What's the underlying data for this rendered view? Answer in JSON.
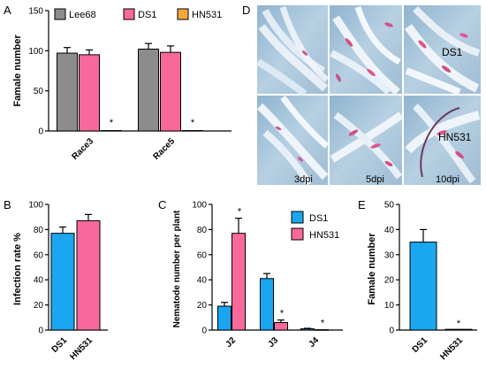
{
  "panels": {
    "A": "A",
    "B": "B",
    "C": "C",
    "D": "D",
    "E": "E"
  },
  "chart_data": [
    {
      "panel": "A",
      "type": "bar",
      "ylabel": "Famale number",
      "ylim": [
        0,
        150
      ],
      "yticks": [
        "0",
        "50",
        "100",
        "150"
      ],
      "categories": [
        "Race3",
        "Race5"
      ],
      "series": [
        {
          "name": "Lee68",
          "color": "#8c8c8c",
          "values": [
            97,
            102
          ],
          "errors": [
            7,
            7
          ]
        },
        {
          "name": "DS1",
          "color": "#f7699b",
          "values": [
            95,
            98
          ],
          "errors": [
            6,
            8
          ]
        },
        {
          "name": "HN531",
          "color": "#f5a93c",
          "values": [
            0.5,
            0.5
          ],
          "errors": [
            0,
            0
          ]
        }
      ],
      "significance": [
        {
          "category": "Race3",
          "series": "HN531",
          "label": "*"
        },
        {
          "category": "Race5",
          "series": "HN531",
          "label": "*"
        }
      ],
      "legend": "top"
    },
    {
      "panel": "B",
      "type": "bar",
      "ylabel": "Infection rate %",
      "ylim": [
        0,
        100
      ],
      "yticks": [
        "0",
        "20",
        "40",
        "60",
        "80",
        "100"
      ],
      "categories": [
        "DS1",
        "HN531"
      ],
      "colors": [
        "#1aa7f0",
        "#f7699b"
      ],
      "values": [
        77,
        87
      ],
      "errors": [
        5,
        5
      ]
    },
    {
      "panel": "C",
      "type": "bar",
      "ylabel": "Nematode number per plant",
      "ylim": [
        0,
        100
      ],
      "yticks": [
        "0",
        "20",
        "40",
        "60",
        "80",
        "100"
      ],
      "categories": [
        "J2",
        "J3",
        "J4"
      ],
      "series": [
        {
          "name": "DS1",
          "color": "#1aa7f0",
          "values": [
            19,
            41,
            1
          ],
          "errors": [
            3,
            4,
            0.4
          ]
        },
        {
          "name": "HN531",
          "color": "#f7699b",
          "values": [
            77,
            6,
            0.3
          ],
          "errors": [
            12,
            2,
            0
          ]
        }
      ],
      "significance": [
        {
          "category": "J2",
          "series": "HN531",
          "label": "*"
        },
        {
          "category": "J3",
          "series": "HN531",
          "label": "*"
        },
        {
          "category": "J4",
          "series": "HN531",
          "label": "*"
        }
      ],
      "legend": "top-right"
    },
    {
      "panel": "E",
      "type": "bar",
      "ylabel": "Famale number",
      "ylim": [
        0,
        50
      ],
      "yticks": [
        "0",
        "10",
        "20",
        "30",
        "40",
        "50"
      ],
      "categories": [
        "DS1",
        "HN531"
      ],
      "colors": [
        "#1aa7f0",
        "#f7699b"
      ],
      "values": [
        35,
        0.3
      ],
      "errors": [
        5,
        0
      ],
      "significance": [
        {
          "category": "HN531",
          "label": "*"
        }
      ]
    }
  ],
  "photo": {
    "row_labels": [
      "DS1",
      "HN531"
    ],
    "time_labels": [
      "3dpi",
      "5dpi",
      "10dpi"
    ]
  }
}
